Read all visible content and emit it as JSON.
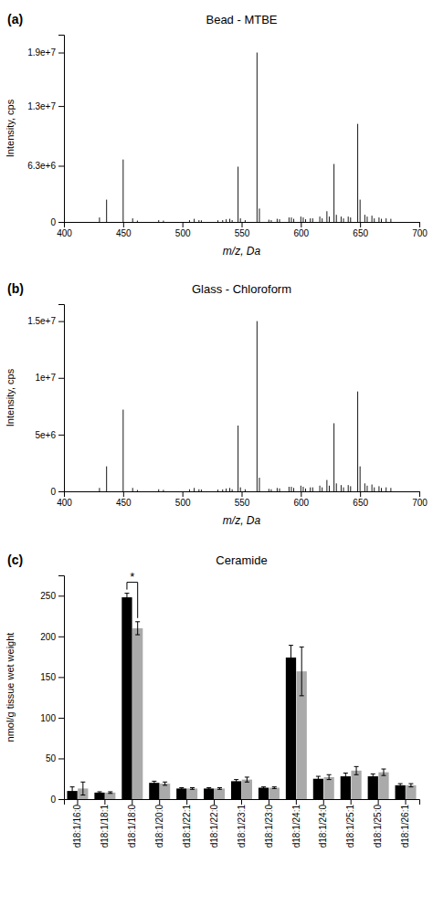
{
  "chart_data": [
    {
      "type": "stem",
      "title": "Bead - MTBE",
      "xlabel": "m/z, Da",
      "ylabel": "Intensity, cps",
      "annotations": [
        {
          "text": "(a)"
        }
      ],
      "color": "#1a1a1a",
      "x": [
        430,
        436,
        450,
        458,
        462,
        480,
        484,
        506,
        510,
        514,
        516,
        530,
        534,
        537,
        540,
        542,
        547,
        549,
        553,
        563,
        565,
        573,
        575,
        580,
        582,
        590,
        592,
        594,
        600,
        602,
        604,
        608,
        610,
        616,
        618,
        622,
        624,
        628,
        630,
        634,
        636,
        640,
        642,
        648,
        650,
        654,
        656,
        660,
        662,
        666,
        668,
        672,
        676
      ],
      "values": [
        500000,
        2500000,
        7000000,
        400000,
        150000,
        200000,
        150000,
        200000,
        350000,
        200000,
        180000,
        180000,
        200000,
        300000,
        350000,
        200000,
        6200000,
        400000,
        200000,
        19000000,
        1500000,
        250000,
        200000,
        350000,
        300000,
        500000,
        500000,
        350000,
        600000,
        500000,
        300000,
        400000,
        400000,
        600000,
        400000,
        1200000,
        600000,
        6500000,
        800000,
        600000,
        400000,
        600000,
        500000,
        11000000,
        2500000,
        800000,
        600000,
        700000,
        400000,
        500000,
        350000,
        400000,
        350000
      ],
      "xlim": [
        400,
        700
      ],
      "xticks": [
        400,
        450,
        500,
        550,
        600,
        650,
        700
      ],
      "ylim": [
        0,
        21000000
      ],
      "yticks": [
        0,
        {
          "value": 6300000,
          "label": "6.3e+6"
        },
        {
          "value": 13000000,
          "label": "1.3e+7"
        },
        {
          "value": 19000000,
          "label": "1.9e+7"
        }
      ],
      "grid": false
    },
    {
      "type": "stem",
      "title": "Glass - Chloroform",
      "xlabel": "m/z, Da",
      "ylabel": "Intensity, cps",
      "annotations": [
        {
          "text": "(b)"
        }
      ],
      "color": "#1a1a1a",
      "x": [
        430,
        436,
        450,
        458,
        462,
        480,
        484,
        506,
        510,
        514,
        516,
        530,
        534,
        537,
        540,
        542,
        547,
        549,
        553,
        563,
        565,
        573,
        575,
        580,
        582,
        590,
        592,
        594,
        600,
        602,
        604,
        608,
        610,
        616,
        618,
        622,
        624,
        628,
        630,
        634,
        636,
        640,
        642,
        648,
        650,
        654,
        656,
        660,
        662,
        666,
        668,
        672,
        676
      ],
      "values": [
        300000,
        2200000,
        7200000,
        300000,
        120000,
        180000,
        130000,
        180000,
        300000,
        180000,
        160000,
        150000,
        170000,
        250000,
        300000,
        180000,
        5800000,
        350000,
        180000,
        15000000,
        1200000,
        220000,
        180000,
        300000,
        260000,
        400000,
        400000,
        300000,
        500000,
        400000,
        250000,
        350000,
        350000,
        500000,
        350000,
        1000000,
        500000,
        6000000,
        700000,
        550000,
        350000,
        550000,
        450000,
        8800000,
        2200000,
        700000,
        500000,
        600000,
        350000,
        450000,
        300000,
        350000,
        300000
      ],
      "xlim": [
        400,
        700
      ],
      "xticks": [
        400,
        450,
        500,
        550,
        600,
        650,
        700
      ],
      "ylim": [
        0,
        16500000
      ],
      "yticks": [
        0,
        {
          "value": 5000000,
          "label": "5e+6"
        },
        {
          "value": 10000000,
          "label": "1e+7"
        },
        {
          "value": 15000000,
          "label": "1.5e+7"
        }
      ],
      "grid": false
    },
    {
      "type": "bar",
      "title": "Ceramide",
      "ylabel": "nmol/g tissue wet weight",
      "annotations": [
        {
          "text": "(c)"
        },
        {
          "text": "*",
          "category": "d18:1/18:0"
        }
      ],
      "categories": [
        "d18:1/16:0",
        "d18:1/18:1",
        "d18:1/18:0",
        "d18:1/20:0",
        "d18:1/22:1",
        "d18:1/22:0",
        "d18:1/23:1",
        "d18:1/23:0",
        "d18:1/24:1",
        "d18:1/24:0",
        "d18:1/25:1",
        "d18:1/25:0",
        "d18:1/26:1"
      ],
      "series": [
        {
          "color": "#000000",
          "values": [
            10,
            8,
            248,
            20,
            13,
            13,
            22,
            14,
            174,
            25,
            28,
            28,
            17
          ],
          "errors": [
            5,
            1,
            5,
            2,
            1,
            1,
            2,
            1,
            15,
            3,
            4,
            3,
            2
          ]
        },
        {
          "color": "#aaaaaa",
          "values": [
            13,
            8,
            210,
            19,
            13,
            13,
            24,
            14,
            157,
            27,
            35,
            33,
            17
          ],
          "errors": [
            8,
            1,
            8,
            2,
            1,
            1,
            3,
            1,
            30,
            3,
            5,
            4,
            2
          ]
        }
      ],
      "ylim": [
        0,
        275
      ],
      "yticks": [
        0,
        50,
        100,
        150,
        200,
        250
      ],
      "grid": false
    }
  ]
}
